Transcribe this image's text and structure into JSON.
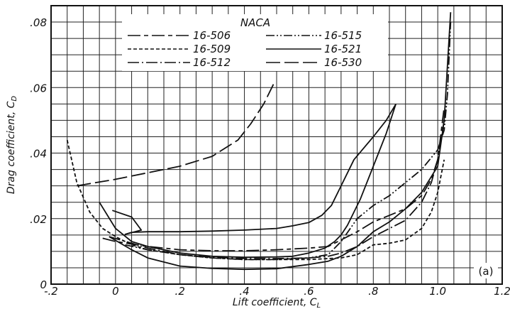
{
  "chart_data": {
    "type": "line",
    "title": "",
    "xlabel": "Lift coefficient, C",
    "xlabel_sub": "L",
    "ylabel": "Drag coefficient, C",
    "ylabel_sub": "D",
    "xlim": [
      -0.2,
      1.2
    ],
    "ylim": [
      0,
      0.085
    ],
    "xticks": [
      -0.2,
      0,
      0.2,
      0.4,
      0.6,
      0.8,
      1.0,
      1.2
    ],
    "xtick_labels": [
      "-.2",
      "0",
      ".2",
      ".4",
      ".6",
      ".8",
      "1.0",
      "1.2"
    ],
    "yticks": [
      0,
      0.02,
      0.04,
      0.06,
      0.08
    ],
    "ytick_labels": [
      "0",
      ".02",
      ".04",
      ".06",
      ".08"
    ],
    "grid": true,
    "legend_title": "NACA",
    "legend_position": "top",
    "panel_label": "(a)",
    "series": [
      {
        "name": "16-506",
        "dash": "long-short",
        "x": [
          -0.04,
          0.0,
          0.1,
          0.2,
          0.3,
          0.4,
          0.5,
          0.6,
          0.66,
          0.7,
          0.75,
          0.8,
          0.85,
          0.9,
          0.95,
          0.98,
          1.0,
          1.02
        ],
        "y": [
          0.014,
          0.013,
          0.0115,
          0.0105,
          0.0102,
          0.0102,
          0.0105,
          0.011,
          0.0115,
          0.0135,
          0.016,
          0.019,
          0.021,
          0.023,
          0.027,
          0.032,
          0.038,
          0.054
        ]
      },
      {
        "name": "16-509",
        "dash": "short",
        "x": [
          -0.15,
          -0.12,
          -0.08,
          -0.04,
          0.0,
          0.05,
          0.1,
          0.2,
          0.3,
          0.4,
          0.5,
          0.6,
          0.7,
          0.75,
          0.8,
          0.85,
          0.9,
          0.95,
          0.98,
          1.0,
          1.02
        ],
        "y": [
          0.044,
          0.031,
          0.022,
          0.017,
          0.0145,
          0.012,
          0.0105,
          0.009,
          0.008,
          0.0075,
          0.0075,
          0.0075,
          0.008,
          0.009,
          0.012,
          0.0125,
          0.0135,
          0.017,
          0.022,
          0.028,
          0.038
        ]
      },
      {
        "name": "16-512",
        "dash": "long-dot",
        "x": [
          -0.02,
          0.05,
          0.1,
          0.2,
          0.3,
          0.4,
          0.5,
          0.6,
          0.66,
          0.7,
          0.75,
          0.8,
          0.85,
          0.9,
          0.95,
          0.98,
          1.0,
          1.02
        ],
        "y": [
          0.0145,
          0.0125,
          0.011,
          0.009,
          0.0082,
          0.0078,
          0.0078,
          0.008,
          0.0085,
          0.0095,
          0.0115,
          0.0145,
          0.017,
          0.0195,
          0.025,
          0.031,
          0.038,
          0.05
        ]
      },
      {
        "name": "16-515",
        "dash": "dash-dot-dot",
        "x": [
          0.03,
          0.1,
          0.2,
          0.3,
          0.4,
          0.5,
          0.6,
          0.66,
          0.7,
          0.75,
          0.8,
          0.85,
          0.9,
          0.95,
          1.0,
          1.02,
          1.03,
          1.04
        ],
        "y": [
          0.012,
          0.0105,
          0.009,
          0.008,
          0.0075,
          0.0075,
          0.008,
          0.009,
          0.013,
          0.02,
          0.024,
          0.027,
          0.031,
          0.035,
          0.041,
          0.047,
          0.058,
          0.08
        ]
      },
      {
        "name": "16-521",
        "dash": "solid",
        "x": [
          -0.02,
          0.05,
          0.1,
          0.2,
          0.3,
          0.4,
          0.5,
          0.6,
          0.66,
          0.7,
          0.75,
          0.8,
          0.85,
          0.9,
          0.95,
          1.0,
          1.02,
          1.04
        ],
        "y": [
          0.0145,
          0.0105,
          0.008,
          0.0055,
          0.0048,
          0.0045,
          0.0047,
          0.006,
          0.007,
          0.0085,
          0.0115,
          0.016,
          0.019,
          0.023,
          0.028,
          0.036,
          0.05,
          0.083
        ]
      },
      {
        "name": "16-530",
        "dash": "long",
        "x": [
          -0.12,
          0.0,
          0.1,
          0.2,
          0.3,
          0.38,
          0.42,
          0.46,
          0.49
        ],
        "y": [
          0.03,
          0.032,
          0.034,
          0.036,
          0.039,
          0.044,
          0.049,
          0.055,
          0.061
        ]
      },
      {
        "name": "",
        "dash": "solid",
        "x": [
          -0.05,
          0.0,
          0.05,
          0.1,
          0.2,
          0.3,
          0.4,
          0.5,
          0.55,
          0.6,
          0.65,
          0.68,
          0.7,
          0.72,
          0.76,
          0.8,
          0.84,
          0.87
        ],
        "y": [
          0.025,
          0.017,
          0.013,
          0.0115,
          0.0095,
          0.0085,
          0.0082,
          0.0083,
          0.0085,
          0.0095,
          0.011,
          0.013,
          0.015,
          0.018,
          0.026,
          0.036,
          0.046,
          0.055
        ]
      },
      {
        "name": "",
        "dash": "solid",
        "x": [
          -0.01,
          0.05,
          0.08,
          0.03,
          0.05,
          0.1,
          0.2,
          0.3,
          0.4,
          0.5,
          0.55,
          0.6,
          0.64,
          0.67,
          0.7,
          0.74,
          0.8,
          0.84,
          0.87
        ],
        "y": [
          0.0225,
          0.0205,
          0.0165,
          0.0152,
          0.0158,
          0.016,
          0.016,
          0.0162,
          0.0165,
          0.017,
          0.0178,
          0.0188,
          0.021,
          0.024,
          0.03,
          0.038,
          0.045,
          0.05,
          0.055
        ]
      }
    ]
  }
}
